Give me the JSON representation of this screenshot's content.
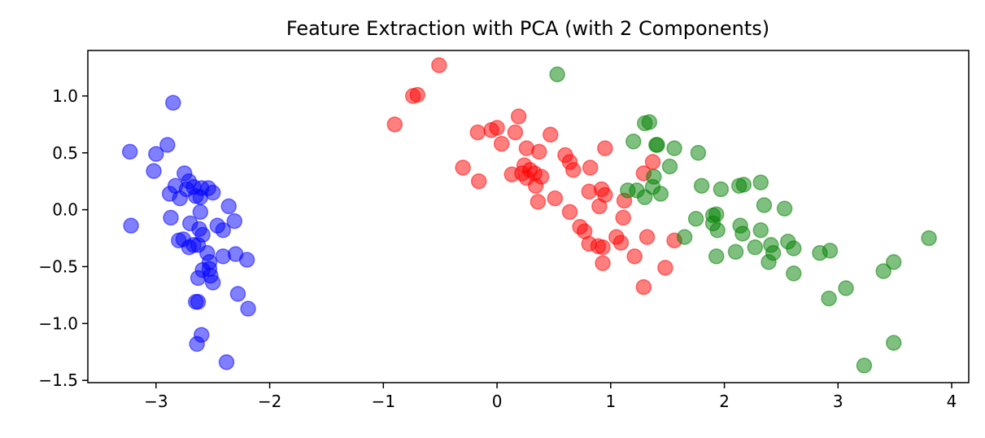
{
  "chart_data": {
    "type": "scatter",
    "title": "Feature Extraction with PCA (with 2 Components)",
    "xlabel": "",
    "ylabel": "",
    "xlim": [
      -3.6,
      4.15
    ],
    "ylim": [
      -1.52,
      1.4
    ],
    "xticks": [
      -3,
      -2,
      -1,
      0,
      1,
      2,
      3,
      4
    ],
    "yticks": [
      1.0,
      0.5,
      0.0,
      -0.5,
      -1.0,
      -1.5
    ],
    "xtick_labels": [
      "−3",
      "−2",
      "−1",
      "0",
      "1",
      "2",
      "3",
      "4"
    ],
    "ytick_labels": [
      "1.0",
      "0.5",
      "0.0",
      "−0.5",
      "−1.0",
      "−1.5"
    ],
    "grid": false,
    "legend": "none",
    "series": [
      {
        "color": "#0000ff",
        "points": [
          [
            -3.23,
            0.51
          ],
          [
            -3.22,
            -0.14
          ],
          [
            -3.0,
            0.49
          ],
          [
            -3.02,
            0.34
          ],
          [
            -2.9,
            0.57
          ],
          [
            -2.85,
            0.94
          ],
          [
            -2.88,
            0.14
          ],
          [
            -2.87,
            -0.07
          ],
          [
            -2.83,
            0.21
          ],
          [
            -2.79,
            0.1
          ],
          [
            -2.8,
            -0.27
          ],
          [
            -2.75,
            0.32
          ],
          [
            -2.76,
            -0.26
          ],
          [
            -2.71,
            0.25
          ],
          [
            -2.73,
            0.18
          ],
          [
            -2.7,
            -0.12
          ],
          [
            -2.71,
            -0.33
          ],
          [
            -2.67,
            0.2
          ],
          [
            -2.65,
            0.12
          ],
          [
            -2.67,
            -0.31
          ],
          [
            -2.63,
            -0.31
          ],
          [
            -2.61,
            0.11
          ],
          [
            -2.62,
            -0.17
          ],
          [
            -2.6,
            0.19
          ],
          [
            -2.61,
            -0.02
          ],
          [
            -2.59,
            -0.22
          ],
          [
            -2.59,
            -0.53
          ],
          [
            -2.54,
            0.19
          ],
          [
            -2.55,
            -0.38
          ],
          [
            -2.53,
            -0.46
          ],
          [
            -2.53,
            -0.52
          ],
          [
            -2.52,
            -0.58
          ],
          [
            -2.5,
            -0.64
          ],
          [
            -2.5,
            0.15
          ],
          [
            -2.46,
            -0.14
          ],
          [
            -2.41,
            -0.18
          ],
          [
            -2.41,
            -0.41
          ],
          [
            -2.36,
            0.03
          ],
          [
            -2.31,
            -0.1
          ],
          [
            -2.3,
            -0.39
          ],
          [
            -2.28,
            -0.74
          ],
          [
            -2.2,
            -0.44
          ],
          [
            -2.19,
            -0.87
          ],
          [
            -2.63,
            -0.6
          ],
          [
            -2.63,
            -0.81
          ],
          [
            -2.65,
            -0.81
          ],
          [
            -2.6,
            -1.1
          ],
          [
            -2.64,
            -1.18
          ],
          [
            -2.38,
            -1.34
          ]
        ]
      },
      {
        "color": "#ff0000",
        "points": [
          [
            -0.51,
            1.27
          ],
          [
            -0.74,
            1.0
          ],
          [
            -0.7,
            1.01
          ],
          [
            -0.9,
            0.75
          ],
          [
            -0.3,
            0.37
          ],
          [
            -0.17,
            0.68
          ],
          [
            -0.16,
            0.25
          ],
          [
            -0.05,
            0.7
          ],
          [
            0.0,
            0.72
          ],
          [
            0.04,
            0.58
          ],
          [
            0.13,
            0.31
          ],
          [
            0.19,
            0.82
          ],
          [
            0.16,
            0.68
          ],
          [
            0.24,
            0.39
          ],
          [
            0.22,
            0.32
          ],
          [
            0.26,
            0.54
          ],
          [
            0.26,
            0.28
          ],
          [
            0.29,
            0.35
          ],
          [
            0.33,
            0.32
          ],
          [
            0.34,
            0.21
          ],
          [
            0.37,
            0.51
          ],
          [
            0.39,
            0.29
          ],
          [
            0.36,
            0.07
          ],
          [
            0.47,
            0.66
          ],
          [
            0.51,
            0.1
          ],
          [
            0.6,
            0.48
          ],
          [
            0.64,
            0.42
          ],
          [
            0.67,
            0.35
          ],
          [
            0.64,
            -0.02
          ],
          [
            0.73,
            -0.15
          ],
          [
            0.77,
            -0.19
          ],
          [
            0.81,
            0.16
          ],
          [
            0.82,
            0.37
          ],
          [
            0.81,
            -0.3
          ],
          [
            0.9,
            0.03
          ],
          [
            0.92,
            0.18
          ],
          [
            0.95,
            0.13
          ],
          [
            0.89,
            -0.32
          ],
          [
            0.93,
            -0.33
          ],
          [
            0.93,
            -0.47
          ],
          [
            0.95,
            0.54
          ],
          [
            1.05,
            -0.24
          ],
          [
            1.09,
            -0.29
          ],
          [
            1.11,
            -0.07
          ],
          [
            1.12,
            0.08
          ],
          [
            1.21,
            -0.41
          ],
          [
            1.29,
            0.32
          ],
          [
            1.29,
            -0.68
          ],
          [
            1.32,
            -0.24
          ],
          [
            1.37,
            0.42
          ],
          [
            1.48,
            -0.51
          ],
          [
            1.56,
            -0.27
          ]
        ]
      },
      {
        "color": "#008000",
        "points": [
          [
            0.53,
            1.19
          ],
          [
            1.2,
            0.6
          ],
          [
            1.3,
            0.76
          ],
          [
            1.34,
            0.77
          ],
          [
            1.4,
            0.57
          ],
          [
            1.41,
            0.57
          ],
          [
            1.56,
            0.54
          ],
          [
            1.77,
            0.5
          ],
          [
            1.15,
            0.17
          ],
          [
            1.23,
            0.17
          ],
          [
            1.3,
            0.11
          ],
          [
            1.37,
            0.2
          ],
          [
            1.38,
            0.29
          ],
          [
            1.44,
            0.14
          ],
          [
            1.52,
            0.38
          ],
          [
            1.65,
            -0.24
          ],
          [
            1.75,
            -0.08
          ],
          [
            1.8,
            0.21
          ],
          [
            1.9,
            -0.12
          ],
          [
            1.9,
            -0.05
          ],
          [
            1.93,
            -0.04
          ],
          [
            1.94,
            -0.18
          ],
          [
            1.93,
            -0.41
          ],
          [
            1.97,
            0.18
          ],
          [
            2.1,
            -0.37
          ],
          [
            2.13,
            0.21
          ],
          [
            2.14,
            -0.14
          ],
          [
            2.16,
            -0.21
          ],
          [
            2.17,
            0.22
          ],
          [
            2.27,
            -0.33
          ],
          [
            2.32,
            0.24
          ],
          [
            2.32,
            -0.18
          ],
          [
            2.35,
            0.04
          ],
          [
            2.39,
            -0.46
          ],
          [
            2.41,
            -0.31
          ],
          [
            2.43,
            -0.38
          ],
          [
            2.53,
            0.01
          ],
          [
            2.56,
            -0.28
          ],
          [
            2.61,
            -0.34
          ],
          [
            2.61,
            -0.56
          ],
          [
            2.84,
            -0.38
          ],
          [
            2.92,
            -0.78
          ],
          [
            2.93,
            -0.36
          ],
          [
            3.07,
            -0.69
          ],
          [
            3.23,
            -1.37
          ],
          [
            3.4,
            -0.54
          ],
          [
            3.49,
            -0.46
          ],
          [
            3.49,
            -1.17
          ],
          [
            3.8,
            -0.25
          ]
        ]
      }
    ]
  }
}
